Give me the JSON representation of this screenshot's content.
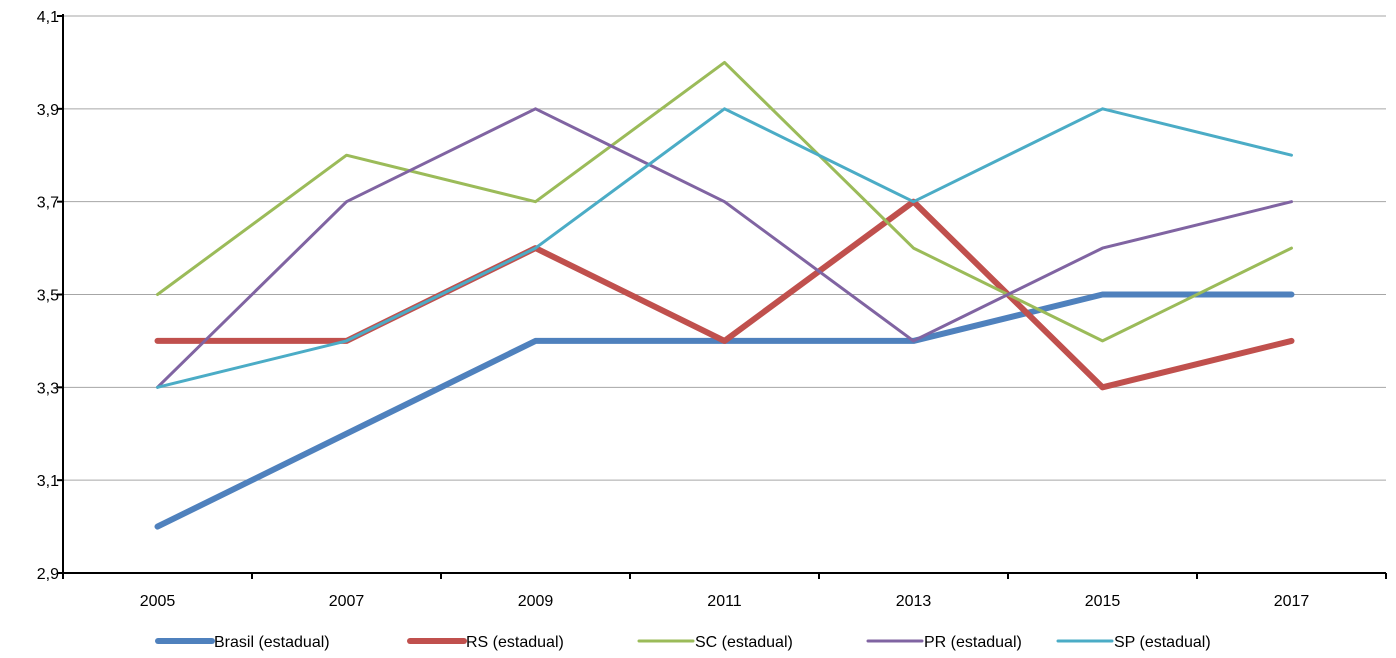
{
  "chart_data": {
    "type": "line",
    "title": "",
    "xlabel": "",
    "ylabel": "",
    "categories": [
      "2005",
      "2007",
      "2009",
      "2011",
      "2013",
      "2015",
      "2017"
    ],
    "ylim": [
      2.9,
      4.1
    ],
    "yticks": [
      "2,9",
      "3,1",
      "3,3",
      "3,5",
      "3,7",
      "3,9",
      "4,1"
    ],
    "grid": "horizontal",
    "legend_position": "bottom",
    "series": [
      {
        "name": "Brasil (estadual)",
        "color": "#4f81bd",
        "values": [
          3.0,
          3.2,
          3.4,
          3.4,
          3.4,
          3.5,
          3.5
        ]
      },
      {
        "name": "RS (estadual)",
        "color": "#c0504d",
        "values": [
          3.4,
          3.4,
          3.6,
          3.4,
          3.7,
          3.3,
          3.4
        ]
      },
      {
        "name": "SC (estadual)",
        "color": "#9bbb59",
        "values": [
          3.5,
          3.8,
          3.7,
          4.0,
          3.6,
          3.4,
          3.6
        ]
      },
      {
        "name": "PR (estadual)",
        "color": "#8064a2",
        "values": [
          3.3,
          3.7,
          3.9,
          3.7,
          3.4,
          3.6,
          3.7
        ]
      },
      {
        "name": "SP (estadual)",
        "color": "#4bacc6",
        "values": [
          3.3,
          3.4,
          3.6,
          3.9,
          3.7,
          3.9,
          3.8
        ]
      }
    ]
  }
}
